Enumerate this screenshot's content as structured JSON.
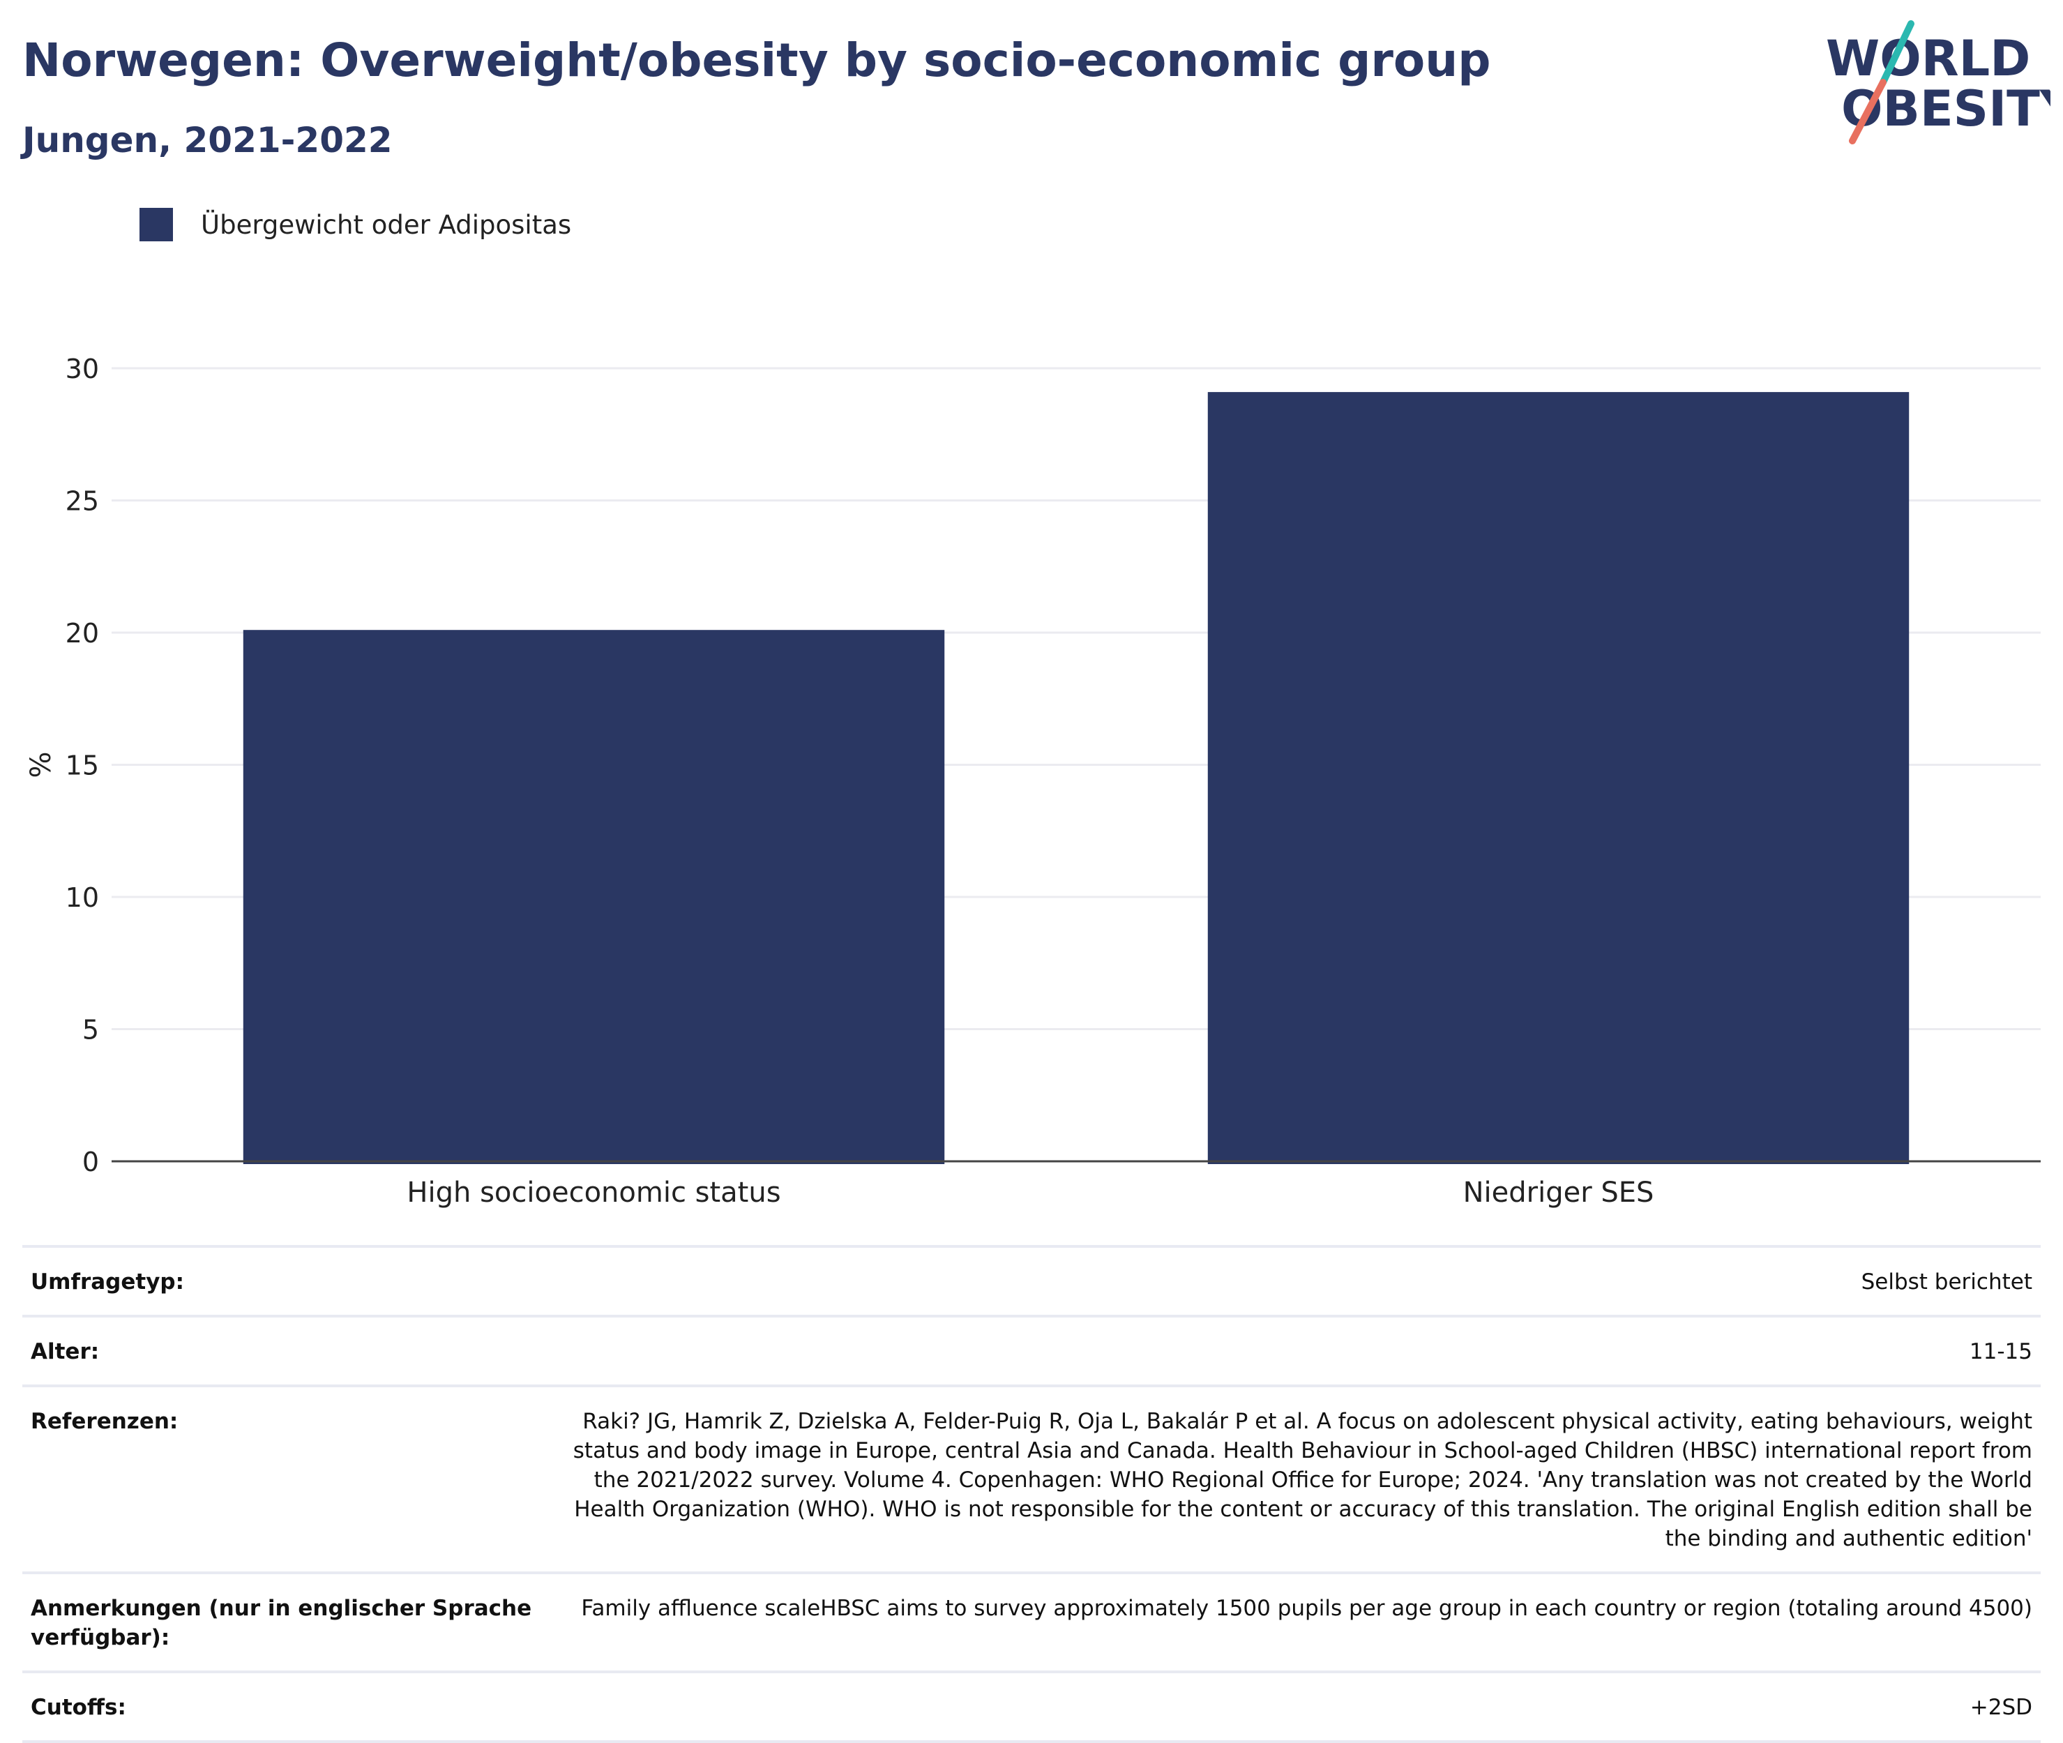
{
  "header": {
    "title": "Norwegen: Overweight/obesity by socio-economic group",
    "subtitle": "Jungen, 2021-2022"
  },
  "logo": {
    "line1": "WORLD",
    "line2": "OBESITY",
    "text_color": "#2a3763",
    "slash_colors": [
      "#2bb8b0",
      "#e8705f"
    ]
  },
  "chart_data": {
    "type": "bar",
    "categories": [
      "High socioeconomic status",
      "Niedriger SES"
    ],
    "series": [
      {
        "name": "Übergewicht oder Adipositas",
        "values": [
          20.1,
          29.1
        ],
        "color": "#2a3763"
      }
    ],
    "ylabel": "%",
    "ylim": [
      0,
      30
    ],
    "yticks": [
      0,
      5,
      10,
      15,
      20,
      25,
      30
    ],
    "grid": true,
    "legend_position": "top-left"
  },
  "info": {
    "rows": [
      {
        "label": "Umfragetyp:",
        "value": "Selbst berichtet"
      },
      {
        "label": "Alter:",
        "value": "11-15"
      },
      {
        "label": "Referenzen:",
        "value": "Raki? JG, Hamrik Z, Dzielska A, Felder-Puig R, Oja L, Bakalár P et al. A focus on adolescent physical activity, eating behaviours, weight status and body image in Europe, central Asia and Canada. Health Behaviour in School-aged Children (HBSC) international report from the 2021/2022 survey. Volume 4. Copenhagen: WHO Regional Office for Europe; 2024. 'Any translation was not created by the World Health Organization (WHO). WHO is not responsible for the content or accuracy of this translation. The original English edition shall be the binding and authentic edition'"
      },
      {
        "label": "Anmerkungen (nur in englischer Sprache verfügbar):",
        "value": "Family affluence scaleHBSC aims to survey approximately 1500 pupils per age group in each country or region (totaling around 4500)"
      },
      {
        "label": "Cutoffs:",
        "value": "+2SD"
      }
    ]
  }
}
